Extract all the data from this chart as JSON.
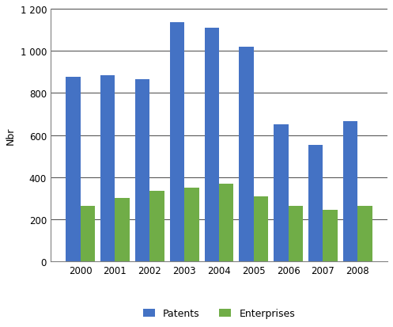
{
  "years": [
    "2000",
    "2001",
    "2002",
    "2003",
    "2004",
    "2005",
    "2006",
    "2007",
    "2008"
  ],
  "patents": [
    875,
    885,
    865,
    1135,
    1110,
    1020,
    650,
    555,
    665
  ],
  "enterprises": [
    262,
    300,
    335,
    350,
    370,
    310,
    263,
    245,
    265
  ],
  "patents_color": "#4472C4",
  "enterprises_color": "#70AD47",
  "ylabel": "Nbr",
  "ylim": [
    0,
    1200
  ],
  "yticks": [
    0,
    200,
    400,
    600,
    800,
    1000,
    1200
  ],
  "ytick_labels": [
    "0",
    "200",
    "400",
    "600",
    "800",
    "1 000",
    "1 200"
  ],
  "legend_labels": [
    "Patents",
    "Enterprises"
  ],
  "background_color": "#ffffff",
  "bar_width": 0.42,
  "grid_color": "#000000",
  "spine_color": "#808080"
}
